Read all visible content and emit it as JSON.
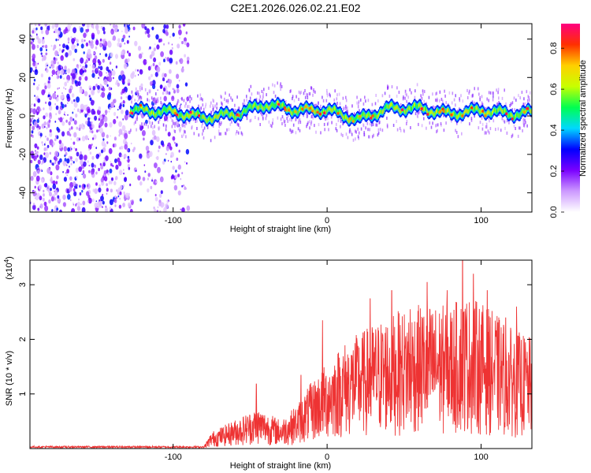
{
  "title": "C2E1.2026.026.02.21.E02",
  "chart_data": [
    {
      "type": "heatmap",
      "xlabel": "Height of straight line (km)",
      "ylabel": "Frequency (Hz)",
      "xlim": [
        -193,
        133
      ],
      "ylim": [
        -50,
        48
      ],
      "xticks": [
        -100,
        0,
        100
      ],
      "xtick_labels": [
        "-100",
        "0",
        "100"
      ],
      "yticks": [
        -40,
        -20,
        0,
        20,
        40
      ],
      "ytick_labels": [
        "-40",
        "-20",
        "0",
        "20",
        "40"
      ],
      "colorbar": {
        "label": "Normalized spectral amplitude",
        "range": [
          0,
          0.92
        ],
        "ticks": [
          0,
          0.2,
          0.4,
          0.6,
          0.8
        ],
        "tick_labels": [
          "0.0",
          "0.2",
          "0.4",
          "0.6",
          "0.8"
        ],
        "colors": [
          "#ffffff",
          "#cc99ff",
          "#7a00ff",
          "#0000ff",
          "#00d8ff",
          "#00ff50",
          "#c8ff00",
          "#ffd000",
          "#ff3000",
          "#ff0080"
        ]
      },
      "band": {
        "x": [
          -128,
          -100,
          -80,
          -60,
          -40,
          -20,
          0,
          20,
          40,
          60,
          80,
          100,
          120,
          133
        ],
        "center_hz": [
          3,
          2,
          -1,
          1,
          6,
          3,
          3,
          -2,
          4,
          4,
          1,
          3,
          1,
          2
        ]
      },
      "noise_region_x": [
        -193,
        -90
      ]
    },
    {
      "type": "line",
      "xlabel": "Height of straight line (km)",
      "ylabel": "SNR (10 * v/v)",
      "y_scale_label": "(x10",
      "y_scale_exponent": "4",
      "xlim": [
        -193,
        133
      ],
      "ylim": [
        0,
        3.45
      ],
      "xticks": [
        -100,
        0,
        100
      ],
      "xtick_labels": [
        "-100",
        "0",
        "100"
      ],
      "yticks": [
        1,
        2,
        3
      ],
      "ytick_labels": [
        "1",
        "2",
        "3"
      ],
      "color": "#ee3333",
      "series": [
        {
          "name": "SNR",
          "envelope_x": [
            -193,
            -100,
            -80,
            -75,
            -60,
            -45,
            -30,
            -20,
            -10,
            0,
            10,
            20,
            30,
            40,
            50,
            60,
            70,
            80,
            90,
            100,
            110,
            120,
            133
          ],
          "envelope_y": [
            0.03,
            0.04,
            0.05,
            0.35,
            0.6,
            0.85,
            0.6,
            0.9,
            1.4,
            1.8,
            2.2,
            2.4,
            2.6,
            2.8,
            2.9,
            3.0,
            3.0,
            3.0,
            3.2,
            3.05,
            2.8,
            2.5,
            2.3
          ],
          "peaks": [
            {
              "x": -46,
              "y": 1.19
            },
            {
              "x": -17,
              "y": 1.35
            },
            {
              "x": -3,
              "y": 2.35
            },
            {
              "x": 28,
              "y": 2.75
            },
            {
              "x": 42,
              "y": 2.9
            },
            {
              "x": 54,
              "y": 2.55
            },
            {
              "x": 65,
              "y": 3.05
            },
            {
              "x": 78,
              "y": 2.9
            },
            {
              "x": 88,
              "y": 3.45
            },
            {
              "x": 95,
              "y": 3.2
            },
            {
              "x": 104,
              "y": 2.9
            },
            {
              "x": 116,
              "y": 2.4
            },
            {
              "x": 123,
              "y": 2.6
            }
          ]
        }
      ]
    }
  ]
}
